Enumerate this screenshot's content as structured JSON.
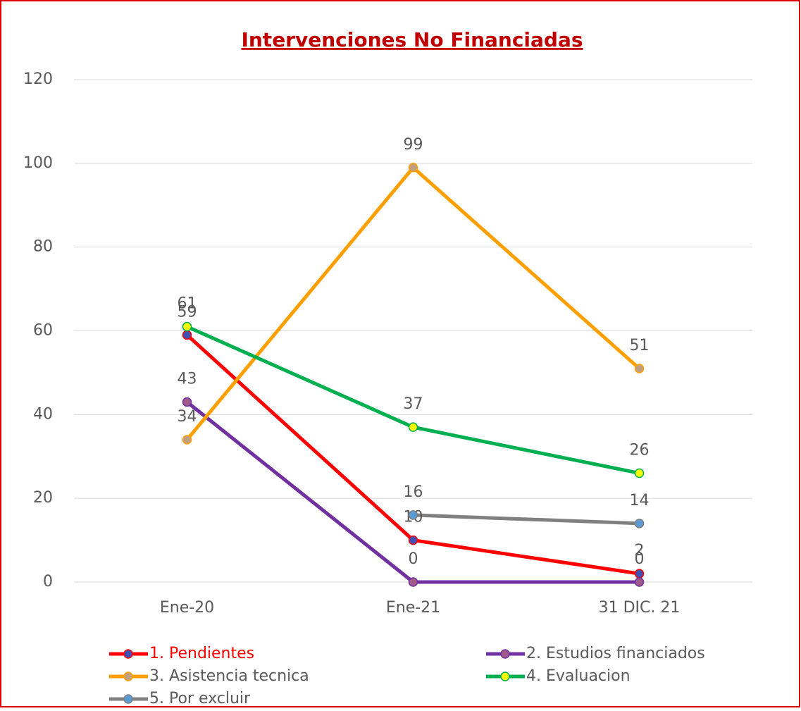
{
  "chart_data": {
    "type": "line",
    "title": "Intervenciones No Financiadas",
    "categories": [
      "Ene-20",
      "Ene-21",
      "31 DIC. 21"
    ],
    "series": [
      {
        "name": "1. Pendientes",
        "color": "#ff0000",
        "marker_color": "#3f51b5",
        "values": [
          59,
          10,
          2
        ]
      },
      {
        "name": "2. Estudios financiados",
        "color": "#7030a0",
        "marker_color": "#a05a8c",
        "values": [
          43,
          0,
          0
        ]
      },
      {
        "name": "3. Asistencia tecnica",
        "color": "#ffa000",
        "marker_color": "#c0a080",
        "values": [
          34,
          99,
          51
        ]
      },
      {
        "name": "4. Evaluacion",
        "color": "#00b050",
        "marker_color": "#ffff00",
        "values": [
          61,
          37,
          26
        ]
      },
      {
        "name": "5. Por excluir",
        "color": "#808080",
        "marker_color": "#5b9bd5",
        "values": [
          null,
          16,
          14
        ]
      }
    ],
    "ylim": [
      0,
      120
    ],
    "yticks": [
      0,
      20,
      40,
      60,
      80,
      100,
      120
    ],
    "grid": true,
    "legend": "bottom"
  }
}
